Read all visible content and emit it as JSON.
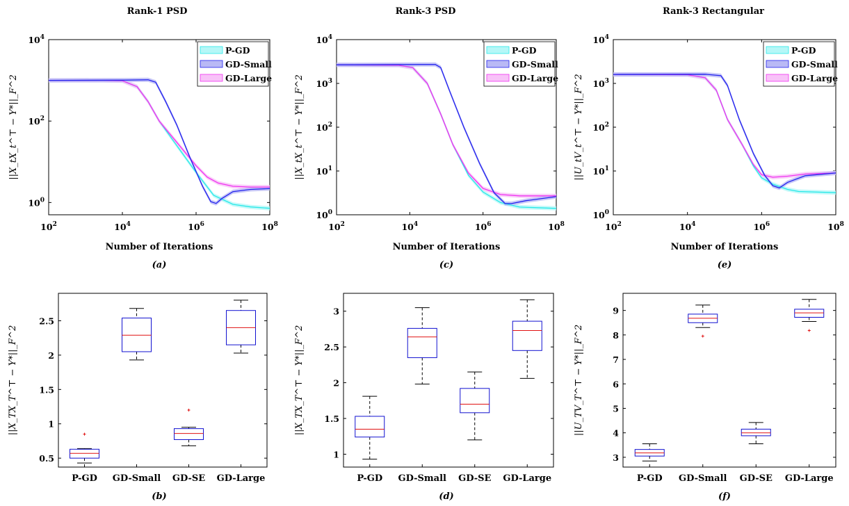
{
  "chart_data": [
    {
      "panel": "a",
      "type": "line",
      "title": "Rank-1 PSD",
      "caption": "(a)",
      "xlabel": "Number of Iterations",
      "xscale": "log",
      "yscale": "log",
      "xlim": [
        100,
        100000000
      ],
      "ylim": [
        0.5,
        10000
      ],
      "xticks": [
        100,
        10000,
        1000000,
        100000000
      ],
      "yticks": [
        1,
        100,
        10000
      ],
      "legend_position": "top-right",
      "series": [
        {
          "name": "P-GD",
          "color": "#27e8e8",
          "band": "#b5f7f7",
          "points": [
            [
              100,
              1000
            ],
            [
              3000,
              1000
            ],
            [
              10000,
              980
            ],
            [
              25000,
              700
            ],
            [
              50000,
              300
            ],
            [
              100000,
              100
            ],
            [
              300000,
              25
            ],
            [
              1000000,
              5.5
            ],
            [
              3000000,
              1.5
            ],
            [
              10000000,
              0.9
            ],
            [
              30000000,
              0.78
            ],
            [
              100000000,
              0.72
            ]
          ]
        },
        {
          "name": "GD-Small",
          "color": "#2222ee",
          "band": "#b9b9f5",
          "points": [
            [
              100,
              1000
            ],
            [
              10000,
              1010
            ],
            [
              50000,
              1030
            ],
            [
              80000,
              900
            ],
            [
              150000,
              300
            ],
            [
              300000,
              80
            ],
            [
              700000,
              12
            ],
            [
              1500000,
              2.5
            ],
            [
              2500000,
              1.05
            ],
            [
              3500000,
              0.95
            ],
            [
              5000000,
              1.25
            ],
            [
              10000000,
              1.85
            ],
            [
              30000000,
              2.1
            ],
            [
              100000000,
              2.2
            ]
          ]
        },
        {
          "name": "GD-Large",
          "color": "#f032f0",
          "band": "#f8c2f8",
          "points": [
            [
              100,
              1000
            ],
            [
              3000,
              1000
            ],
            [
              10000,
              980
            ],
            [
              25000,
              700
            ],
            [
              50000,
              300
            ],
            [
              100000,
              100
            ],
            [
              300000,
              30
            ],
            [
              1000000,
              8
            ],
            [
              2000000,
              4.2
            ],
            [
              4000000,
              3.0
            ],
            [
              10000000,
              2.5
            ],
            [
              30000000,
              2.4
            ],
            [
              100000000,
              2.4
            ]
          ]
        }
      ]
    },
    {
      "panel": "c",
      "type": "line",
      "title": "Rank-3 PSD",
      "caption": "(c)",
      "xlabel": "Number of Iterations",
      "xscale": "log",
      "yscale": "log",
      "xlim": [
        100,
        100000000
      ],
      "ylim": [
        1,
        10000
      ],
      "xticks": [
        100,
        10000,
        1000000,
        100000000
      ],
      "yticks": [
        1,
        10,
        100,
        1000,
        10000
      ],
      "legend_position": "top-right",
      "series": [
        {
          "name": "P-GD",
          "color": "#27e8e8",
          "band": "#b5f7f7",
          "points": [
            [
              100,
              2650
            ],
            [
              5000,
              2600
            ],
            [
              12000,
              2300
            ],
            [
              30000,
              1000
            ],
            [
              70000,
              200
            ],
            [
              150000,
              40
            ],
            [
              400000,
              8
            ],
            [
              1000000,
              3.3
            ],
            [
              3000000,
              1.9
            ],
            [
              10000000,
              1.5
            ],
            [
              100000000,
              1.4
            ]
          ]
        },
        {
          "name": "GD-Small",
          "color": "#2222ee",
          "band": "#b9b9f5",
          "points": [
            [
              100,
              2650
            ],
            [
              20000,
              2700
            ],
            [
              50000,
              2700
            ],
            [
              70000,
              2300
            ],
            [
              120000,
              700
            ],
            [
              300000,
              100
            ],
            [
              800000,
              15
            ],
            [
              2000000,
              3.2
            ],
            [
              4000000,
              1.8
            ],
            [
              6000000,
              1.8
            ],
            [
              15000000,
              2.1
            ],
            [
              100000000,
              2.6
            ]
          ]
        },
        {
          "name": "GD-Large",
          "color": "#f032f0",
          "band": "#f8c2f8",
          "points": [
            [
              100,
              2650
            ],
            [
              5000,
              2600
            ],
            [
              12000,
              2300
            ],
            [
              30000,
              1000
            ],
            [
              70000,
              200
            ],
            [
              150000,
              40
            ],
            [
              400000,
              9
            ],
            [
              1000000,
              4
            ],
            [
              3000000,
              2.9
            ],
            [
              10000000,
              2.7
            ],
            [
              100000000,
              2.7
            ]
          ]
        }
      ]
    },
    {
      "panel": "e",
      "type": "line",
      "title": "Rank-3 Rectangular",
      "caption": "(e)",
      "xlabel": "Number of Iterations",
      "xscale": "log",
      "yscale": "log",
      "xlim": [
        100,
        100000000
      ],
      "ylim": [
        1,
        10000
      ],
      "xticks": [
        100,
        10000,
        1000000,
        100000000
      ],
      "yticks": [
        1,
        10,
        100,
        1000,
        10000
      ],
      "legend_position": "top-right",
      "series": [
        {
          "name": "P-GD",
          "color": "#27e8e8",
          "band": "#b5f7f7",
          "points": [
            [
              100,
              1600
            ],
            [
              10000,
              1580
            ],
            [
              30000,
              1350
            ],
            [
              60000,
              700
            ],
            [
              120000,
              150
            ],
            [
              300000,
              40
            ],
            [
              600000,
              13
            ],
            [
              1000000,
              7
            ],
            [
              2000000,
              5
            ],
            [
              5000000,
              3.8
            ],
            [
              10000000,
              3.4
            ],
            [
              100000000,
              3.2
            ]
          ]
        },
        {
          "name": "GD-Small",
          "color": "#2222ee",
          "band": "#b9b9f5",
          "points": [
            [
              100,
              1600
            ],
            [
              30000,
              1620
            ],
            [
              80000,
              1500
            ],
            [
              120000,
              900
            ],
            [
              250000,
              150
            ],
            [
              600000,
              25
            ],
            [
              1200000,
              8
            ],
            [
              2000000,
              4.6
            ],
            [
              3000000,
              4.1
            ],
            [
              5000000,
              5.5
            ],
            [
              15000000,
              7.8
            ],
            [
              100000000,
              9
            ]
          ]
        },
        {
          "name": "GD-Large",
          "color": "#f032f0",
          "band": "#f8c2f8",
          "points": [
            [
              100,
              1600
            ],
            [
              10000,
              1580
            ],
            [
              30000,
              1350
            ],
            [
              60000,
              700
            ],
            [
              120000,
              150
            ],
            [
              300000,
              40
            ],
            [
              600000,
              14
            ],
            [
              1000000,
              8.2
            ],
            [
              2000000,
              7.2
            ],
            [
              5000000,
              7.6
            ],
            [
              15000000,
              8.5
            ],
            [
              100000000,
              9
            ]
          ]
        }
      ]
    },
    {
      "panel": "b",
      "type": "box",
      "caption": "(b)",
      "categories": [
        "P-GD",
        "GD-Small",
        "GD-SE",
        "GD-Large"
      ],
      "ylim": [
        0.37,
        2.9
      ],
      "yticks": [
        0.5,
        1,
        1.5,
        2,
        2.5
      ],
      "boxes": [
        {
          "min": 0.43,
          "q1": 0.5,
          "median": 0.57,
          "q3": 0.63,
          "max": 0.64,
          "outliers": [
            0.85
          ]
        },
        {
          "min": 1.93,
          "q1": 2.05,
          "median": 2.29,
          "q3": 2.54,
          "max": 2.68,
          "outliers": []
        },
        {
          "min": 0.68,
          "q1": 0.77,
          "median": 0.86,
          "q3": 0.93,
          "max": 0.95,
          "outliers": [
            1.2
          ]
        },
        {
          "min": 2.03,
          "q1": 2.15,
          "median": 2.4,
          "q3": 2.65,
          "max": 2.8,
          "outliers": []
        }
      ]
    },
    {
      "panel": "d",
      "type": "box",
      "caption": "(d)",
      "categories": [
        "P-GD",
        "GD-Small",
        "GD-SE",
        "GD-Large"
      ],
      "ylim": [
        0.82,
        3.25
      ],
      "yticks": [
        1,
        1.5,
        2,
        2.5,
        3
      ],
      "boxes": [
        {
          "min": 0.93,
          "q1": 1.24,
          "median": 1.35,
          "q3": 1.53,
          "max": 1.81,
          "outliers": []
        },
        {
          "min": 1.98,
          "q1": 2.35,
          "median": 2.64,
          "q3": 2.76,
          "max": 3.05,
          "outliers": []
        },
        {
          "min": 1.2,
          "q1": 1.58,
          "median": 1.7,
          "q3": 1.92,
          "max": 2.15,
          "outliers": []
        },
        {
          "min": 2.06,
          "q1": 2.45,
          "median": 2.73,
          "q3": 2.86,
          "max": 3.16,
          "outliers": []
        }
      ]
    },
    {
      "panel": "f",
      "type": "box",
      "caption": "(f)",
      "categories": [
        "P-GD",
        "GD-Small",
        "GD-SE",
        "GD-Large"
      ],
      "ylim": [
        2.6,
        9.7
      ],
      "yticks": [
        3,
        4,
        5,
        6,
        7,
        8,
        9
      ],
      "boxes": [
        {
          "min": 2.85,
          "q1": 3.05,
          "median": 3.18,
          "q3": 3.32,
          "max": 3.55,
          "outliers": []
        },
        {
          "min": 8.3,
          "q1": 8.5,
          "median": 8.68,
          "q3": 8.85,
          "max": 9.22,
          "outliers": [
            7.95
          ]
        },
        {
          "min": 3.55,
          "q1": 3.88,
          "median": 4.0,
          "q3": 4.15,
          "max": 4.42,
          "outliers": []
        },
        {
          "min": 8.55,
          "q1": 8.72,
          "median": 8.9,
          "q3": 9.05,
          "max": 9.45,
          "outliers": [
            8.18
          ]
        }
      ]
    }
  ],
  "text": {
    "ylabels": {
      "top_left": "||X_tX_t^⊤ − Y*||_F^2",
      "top_mid": "||X_tX_t^⊤ − Y*||_F^2",
      "top_right": "||U_tV_t^⊤ − Y*||_F^2",
      "bot_left": "||X_TX_T^⊤ − Y*||_F^2",
      "bot_mid": "||X_TX_T^⊤ − Y*||_F^2",
      "bot_right": "||U_TV_T^⊤ − Y*||_F^2"
    }
  }
}
